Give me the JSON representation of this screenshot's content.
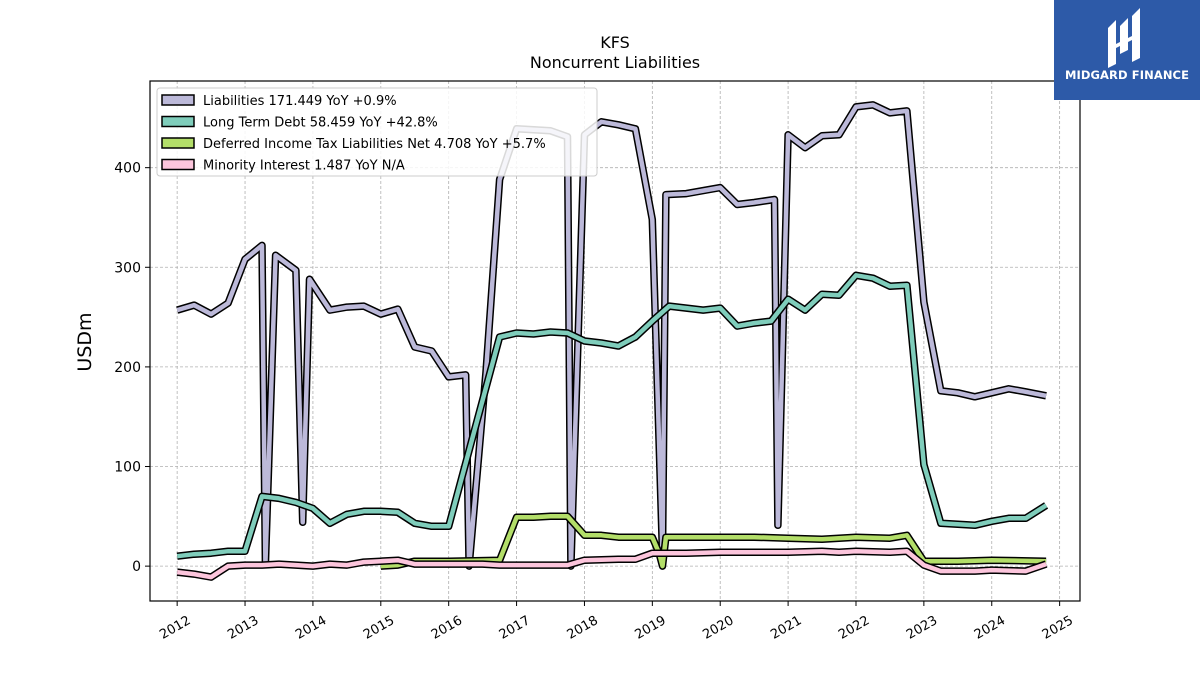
{
  "chart_data": {
    "type": "line",
    "title": "KFS",
    "subtitle": "Noncurrent  Liabilities",
    "ylabel": "USDm",
    "xlabel": "",
    "xlim": [
      2011.6,
      2025.3
    ],
    "ylim": [
      -35,
      487
    ],
    "yticks": [
      0,
      100,
      200,
      300,
      400
    ],
    "xticks": [
      2012,
      2013,
      2014,
      2015,
      2016,
      2017,
      2018,
      2019,
      2020,
      2021,
      2022,
      2023,
      2024,
      2025
    ],
    "grid": true,
    "legend_position": "upper-left",
    "series": [
      {
        "name": "Liabilities  171.449 YoY +0.9%",
        "color": "#bcb9d9",
        "points": [
          [
            2012.0,
            257
          ],
          [
            2012.25,
            262
          ],
          [
            2012.5,
            253
          ],
          [
            2012.75,
            264
          ],
          [
            2013.0,
            308
          ],
          [
            2013.25,
            322
          ],
          [
            2013.3,
            2
          ],
          [
            2013.45,
            312
          ],
          [
            2013.75,
            297
          ],
          [
            2013.85,
            44
          ],
          [
            2013.95,
            288
          ],
          [
            2014.25,
            257
          ],
          [
            2014.5,
            260
          ],
          [
            2014.75,
            261
          ],
          [
            2015.0,
            253
          ],
          [
            2015.25,
            258
          ],
          [
            2015.5,
            220
          ],
          [
            2015.75,
            216
          ],
          [
            2016.0,
            190
          ],
          [
            2016.25,
            192
          ],
          [
            2016.3,
            0
          ],
          [
            2016.55,
            195
          ],
          [
            2016.75,
            388
          ],
          [
            2017.0,
            439
          ],
          [
            2017.5,
            437
          ],
          [
            2017.75,
            431
          ],
          [
            2017.8,
            0
          ],
          [
            2018.0,
            433
          ],
          [
            2018.25,
            446
          ],
          [
            2018.5,
            443
          ],
          [
            2018.75,
            439
          ],
          [
            2019.0,
            348
          ],
          [
            2019.15,
            12
          ],
          [
            2019.2,
            373
          ],
          [
            2019.5,
            374
          ],
          [
            2019.75,
            377
          ],
          [
            2020.0,
            380
          ],
          [
            2020.25,
            363
          ],
          [
            2020.5,
            365
          ],
          [
            2020.8,
            368
          ],
          [
            2020.85,
            41
          ],
          [
            2021.0,
            433
          ],
          [
            2021.25,
            420
          ],
          [
            2021.5,
            432
          ],
          [
            2021.75,
            433
          ],
          [
            2022.0,
            461
          ],
          [
            2022.25,
            463
          ],
          [
            2022.5,
            455
          ],
          [
            2022.75,
            457
          ],
          [
            2023.0,
            265
          ],
          [
            2023.25,
            176
          ],
          [
            2023.5,
            174
          ],
          [
            2023.75,
            170
          ],
          [
            2024.0,
            174
          ],
          [
            2024.25,
            178
          ],
          [
            2024.5,
            175
          ],
          [
            2024.8,
            171
          ]
        ]
      },
      {
        "name": "Long Term Debt  58.459 YoY +42.8%",
        "color": "#7fcdbb",
        "points": [
          [
            2012.0,
            10
          ],
          [
            2012.25,
            12
          ],
          [
            2012.5,
            13
          ],
          [
            2012.75,
            15
          ],
          [
            2013.0,
            15
          ],
          [
            2013.25,
            70
          ],
          [
            2013.5,
            68
          ],
          [
            2013.75,
            64
          ],
          [
            2014.0,
            58
          ],
          [
            2014.25,
            43
          ],
          [
            2014.5,
            52
          ],
          [
            2014.75,
            55
          ],
          [
            2015.0,
            55
          ],
          [
            2015.25,
            54
          ],
          [
            2015.5,
            43
          ],
          [
            2015.75,
            40
          ],
          [
            2016.0,
            40
          ],
          [
            2016.75,
            230
          ],
          [
            2017.0,
            234
          ],
          [
            2017.25,
            233
          ],
          [
            2017.5,
            235
          ],
          [
            2017.75,
            234
          ],
          [
            2018.0,
            226
          ],
          [
            2018.25,
            224
          ],
          [
            2018.5,
            221
          ],
          [
            2018.75,
            230
          ],
          [
            2019.0,
            246
          ],
          [
            2019.25,
            261
          ],
          [
            2019.5,
            259
          ],
          [
            2019.75,
            257
          ],
          [
            2020.0,
            259
          ],
          [
            2020.25,
            241
          ],
          [
            2020.5,
            244
          ],
          [
            2020.75,
            246
          ],
          [
            2021.0,
            268
          ],
          [
            2021.25,
            257
          ],
          [
            2021.5,
            273
          ],
          [
            2021.75,
            272
          ],
          [
            2022.0,
            292
          ],
          [
            2022.25,
            289
          ],
          [
            2022.5,
            281
          ],
          [
            2022.75,
            282
          ],
          [
            2023.0,
            102
          ],
          [
            2023.25,
            43
          ],
          [
            2023.5,
            42
          ],
          [
            2023.75,
            41
          ],
          [
            2024.0,
            45
          ],
          [
            2024.25,
            48
          ],
          [
            2024.5,
            48
          ],
          [
            2024.8,
            61
          ]
        ]
      },
      {
        "name": "Deferred Income Tax Liabilities Net  4.708 YoY +5.7%",
        "color": "#b3de69",
        "points": [
          [
            2015.0,
            0
          ],
          [
            2015.25,
            1
          ],
          [
            2015.5,
            5
          ],
          [
            2016.0,
            5
          ],
          [
            2016.75,
            6
          ],
          [
            2017.0,
            49
          ],
          [
            2017.25,
            49
          ],
          [
            2017.5,
            50
          ],
          [
            2017.75,
            50
          ],
          [
            2018.0,
            31
          ],
          [
            2018.25,
            31
          ],
          [
            2018.5,
            29
          ],
          [
            2019.0,
            29
          ],
          [
            2019.1,
            13
          ],
          [
            2019.15,
            0
          ],
          [
            2019.2,
            29
          ],
          [
            2019.5,
            29
          ],
          [
            2020.0,
            29
          ],
          [
            2020.5,
            29
          ],
          [
            2021.0,
            28
          ],
          [
            2021.5,
            27
          ],
          [
            2022.0,
            29
          ],
          [
            2022.5,
            28
          ],
          [
            2022.75,
            31
          ],
          [
            2023.0,
            5
          ],
          [
            2023.5,
            5
          ],
          [
            2024.0,
            6
          ],
          [
            2024.8,
            5
          ]
        ]
      },
      {
        "name": "Minority Interest  1.487 YoY N/A",
        "color": "#fcc5dc",
        "points": [
          [
            2012.0,
            -6
          ],
          [
            2012.25,
            -8
          ],
          [
            2012.5,
            -11
          ],
          [
            2012.75,
            0
          ],
          [
            2013.0,
            1
          ],
          [
            2013.25,
            1
          ],
          [
            2013.5,
            2
          ],
          [
            2013.75,
            1
          ],
          [
            2014.0,
            0
          ],
          [
            2014.25,
            2
          ],
          [
            2014.5,
            1
          ],
          [
            2014.75,
            4
          ],
          [
            2015.0,
            5
          ],
          [
            2015.25,
            6
          ],
          [
            2015.5,
            2
          ],
          [
            2016.0,
            2
          ],
          [
            2016.5,
            2
          ],
          [
            2016.75,
            1
          ],
          [
            2017.0,
            1
          ],
          [
            2017.5,
            1
          ],
          [
            2017.75,
            1
          ],
          [
            2018.0,
            6
          ],
          [
            2018.5,
            7
          ],
          [
            2018.75,
            7
          ],
          [
            2019.0,
            13
          ],
          [
            2019.5,
            13
          ],
          [
            2020.0,
            14
          ],
          [
            2020.5,
            14
          ],
          [
            2021.0,
            14
          ],
          [
            2021.5,
            15
          ],
          [
            2021.75,
            14
          ],
          [
            2022.0,
            15
          ],
          [
            2022.5,
            14
          ],
          [
            2022.75,
            15
          ],
          [
            2023.0,
            1
          ],
          [
            2023.25,
            -5
          ],
          [
            2023.5,
            -5
          ],
          [
            2023.75,
            -5
          ],
          [
            2024.0,
            -4
          ],
          [
            2024.5,
            -5
          ],
          [
            2024.8,
            2
          ]
        ]
      }
    ]
  },
  "logo": {
    "text": "MIDGARD FINANCE",
    "icon": "midgard-logo-icon",
    "background": "#2d5aa8"
  }
}
